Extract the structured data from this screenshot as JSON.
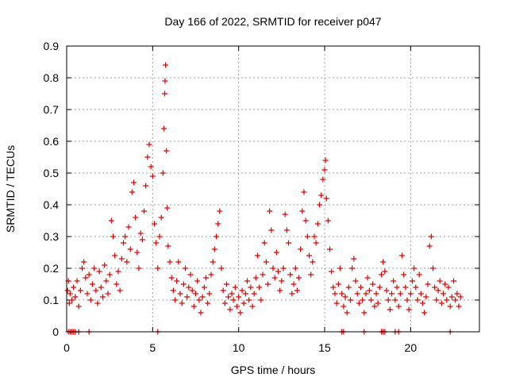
{
  "chart_data": {
    "type": "scatter",
    "title": "Day 166 of 2022, SRMTID for receiver p047",
    "xlabel": "GPS time / hours",
    "ylabel": "SRMTID / TECUs",
    "xlim": [
      0,
      24
    ],
    "ylim": [
      0,
      0.9
    ],
    "xticks": [
      0,
      5,
      10,
      15,
      20
    ],
    "xtick_labels": [
      "0",
      "5",
      "10",
      "15",
      "20"
    ],
    "yticks": [
      0,
      0.1,
      0.2,
      0.3,
      0.4,
      0.5,
      0.6,
      0.7,
      0.8,
      0.9
    ],
    "ytick_labels": [
      "0",
      "0.1",
      "0.2",
      "0.3",
      "0.4",
      "0.5",
      "0.6",
      "0.7",
      "0.8",
      "0.9"
    ],
    "grid": true,
    "marker": "+",
    "color": "#e00000",
    "series": [
      {
        "name": "SRMTID",
        "points": [
          [
            0.05,
            0.13
          ],
          [
            0.1,
            0.16
          ],
          [
            0.15,
            0.09
          ],
          [
            0.2,
            0.12
          ],
          [
            0.3,
            0.1
          ],
          [
            0.4,
            0.14
          ],
          [
            0.5,
            0.11
          ],
          [
            0.6,
            0.16
          ],
          [
            0.7,
            0.08
          ],
          [
            0.8,
            0.13
          ],
          [
            0.9,
            0.2
          ],
          [
            1.0,
            0.22
          ],
          [
            1.1,
            0.17
          ],
          [
            1.2,
            0.12
          ],
          [
            1.3,
            0.18
          ],
          [
            1.4,
            0.1
          ],
          [
            1.5,
            0.15
          ],
          [
            1.6,
            0.2
          ],
          [
            1.7,
            0.13
          ],
          [
            1.8,
            0.09
          ],
          [
            1.9,
            0.19
          ],
          [
            2.0,
            0.14
          ],
          [
            2.1,
            0.11
          ],
          [
            2.2,
            0.21
          ],
          [
            2.3,
            0.16
          ],
          [
            2.4,
            0.12
          ],
          [
            2.5,
            0.18
          ],
          [
            2.6,
            0.35
          ],
          [
            2.7,
            0.3
          ],
          [
            2.8,
            0.24
          ],
          [
            2.9,
            0.15
          ],
          [
            3.0,
            0.19
          ],
          [
            3.1,
            0.13
          ],
          [
            3.2,
            0.23
          ],
          [
            3.3,
            0.28
          ],
          [
            3.4,
            0.3
          ],
          [
            3.5,
            0.22
          ],
          [
            3.6,
            0.33
          ],
          [
            3.7,
            0.26
          ],
          [
            3.8,
            0.44
          ],
          [
            3.9,
            0.47
          ],
          [
            4.0,
            0.36
          ],
          [
            4.1,
            0.25
          ],
          [
            4.2,
            0.2
          ],
          [
            4.3,
            0.31
          ],
          [
            4.4,
            0.29
          ],
          [
            4.5,
            0.38
          ],
          [
            4.6,
            0.46
          ],
          [
            4.7,
            0.55
          ],
          [
            4.8,
            0.59
          ],
          [
            4.9,
            0.52
          ],
          [
            5.0,
            0.49
          ],
          [
            5.1,
            0.34
          ],
          [
            5.2,
            0.28
          ],
          [
            5.3,
            0.2
          ],
          [
            5.4,
            0.3
          ],
          [
            5.5,
            0.36
          ],
          [
            5.6,
            0.5
          ],
          [
            5.65,
            0.64
          ],
          [
            5.7,
            0.75
          ],
          [
            5.72,
            0.79
          ],
          [
            5.75,
            0.84
          ],
          [
            5.8,
            0.57
          ],
          [
            5.85,
            0.39
          ],
          [
            5.9,
            0.27
          ],
          [
            6.0,
            0.22
          ],
          [
            6.1,
            0.17
          ],
          [
            6.2,
            0.13
          ],
          [
            6.3,
            0.1
          ],
          [
            6.4,
            0.16
          ],
          [
            6.5,
            0.22
          ],
          [
            6.6,
            0.12
          ],
          [
            6.7,
            0.09
          ],
          [
            6.8,
            0.15
          ],
          [
            6.9,
            0.2
          ],
          [
            7.0,
            0.11
          ],
          [
            7.1,
            0.14
          ],
          [
            7.2,
            0.18
          ],
          [
            7.3,
            0.13
          ],
          [
            7.4,
            0.08
          ],
          [
            7.5,
            0.12
          ],
          [
            7.6,
            0.16
          ],
          [
            7.7,
            0.1
          ],
          [
            7.8,
            0.06
          ],
          [
            7.9,
            0.11
          ],
          [
            8.0,
            0.14
          ],
          [
            8.1,
            0.17
          ],
          [
            8.2,
            0.09
          ],
          [
            8.3,
            0.12
          ],
          [
            8.4,
            0.18
          ],
          [
            8.5,
            0.22
          ],
          [
            8.6,
            0.26
          ],
          [
            8.7,
            0.3
          ],
          [
            8.8,
            0.34
          ],
          [
            8.9,
            0.38
          ],
          [
            9.0,
            0.2
          ],
          [
            9.1,
            0.13
          ],
          [
            9.2,
            0.09
          ],
          [
            9.3,
            0.15
          ],
          [
            9.4,
            0.11
          ],
          [
            9.5,
            0.07
          ],
          [
            9.6,
            0.12
          ],
          [
            9.7,
            0.1
          ],
          [
            9.8,
            0.14
          ],
          [
            9.9,
            0.08
          ],
          [
            10.0,
            0.11
          ],
          [
            10.1,
            0.06
          ],
          [
            10.2,
            0.13
          ],
          [
            10.3,
            0.09
          ],
          [
            10.4,
            0.12
          ],
          [
            10.5,
            0.16
          ],
          [
            10.6,
            0.1
          ],
          [
            10.7,
            0.14
          ],
          [
            10.8,
            0.08
          ],
          [
            10.9,
            0.12
          ],
          [
            11.0,
            0.17
          ],
          [
            11.1,
            0.24
          ],
          [
            11.2,
            0.14
          ],
          [
            11.3,
            0.1
          ],
          [
            11.4,
            0.18
          ],
          [
            11.5,
            0.28
          ],
          [
            11.6,
            0.22
          ],
          [
            11.7,
            0.15
          ],
          [
            11.8,
            0.38
          ],
          [
            11.9,
            0.32
          ],
          [
            12.0,
            0.2
          ],
          [
            12.1,
            0.17
          ],
          [
            12.2,
            0.25
          ],
          [
            12.3,
            0.19
          ],
          [
            12.4,
            0.13
          ],
          [
            12.5,
            0.16
          ],
          [
            12.6,
            0.2
          ],
          [
            12.7,
            0.37
          ],
          [
            12.8,
            0.32
          ],
          [
            12.9,
            0.28
          ],
          [
            13.0,
            0.18
          ],
          [
            13.1,
            0.12
          ],
          [
            13.2,
            0.15
          ],
          [
            13.3,
            0.2
          ],
          [
            13.4,
            0.13
          ],
          [
            13.5,
            0.17
          ],
          [
            13.6,
            0.26
          ],
          [
            13.7,
            0.38
          ],
          [
            13.8,
            0.44
          ],
          [
            13.9,
            0.35
          ],
          [
            14.0,
            0.3
          ],
          [
            14.1,
            0.24
          ],
          [
            14.2,
            0.18
          ],
          [
            14.3,
            0.22
          ],
          [
            14.4,
            0.3
          ],
          [
            14.5,
            0.28
          ],
          [
            14.6,
            0.34
          ],
          [
            14.7,
            0.4
          ],
          [
            14.8,
            0.43
          ],
          [
            14.9,
            0.48
          ],
          [
            15.0,
            0.51
          ],
          [
            15.05,
            0.54
          ],
          [
            15.1,
            0.42
          ],
          [
            15.2,
            0.35
          ],
          [
            15.3,
            0.26
          ],
          [
            15.4,
            0.19
          ],
          [
            15.5,
            0.14
          ],
          [
            15.6,
            0.12
          ],
          [
            15.7,
            0.09
          ],
          [
            15.8,
            0.15
          ],
          [
            15.9,
            0.2
          ],
          [
            16.0,
            0.12
          ],
          [
            16.1,
            0.08
          ],
          [
            16.2,
            0.11
          ],
          [
            16.3,
            0.06
          ],
          [
            16.4,
            0.14
          ],
          [
            16.5,
            0.1
          ],
          [
            16.6,
            0.2
          ],
          [
            16.7,
            0.23
          ],
          [
            16.8,
            0.16
          ],
          [
            16.9,
            0.12
          ],
          [
            17.0,
            0.09
          ],
          [
            17.1,
            0.14
          ],
          [
            17.2,
            0.1
          ],
          [
            17.3,
            0.06
          ],
          [
            17.4,
            0.12
          ],
          [
            17.5,
            0.17
          ],
          [
            17.6,
            0.13
          ],
          [
            17.7,
            0.1
          ],
          [
            17.8,
            0.15
          ],
          [
            17.9,
            0.08
          ],
          [
            18.0,
            0.12
          ],
          [
            18.1,
            0.09
          ],
          [
            18.2,
            0.14
          ],
          [
            18.3,
            0.18
          ],
          [
            18.4,
            0.22
          ],
          [
            18.5,
            0.19
          ],
          [
            18.6,
            0.13
          ],
          [
            18.7,
            0.1
          ],
          [
            18.8,
            0.07
          ],
          [
            18.9,
            0.12
          ],
          [
            19.0,
            0.16
          ],
          [
            19.1,
            0.1
          ],
          [
            19.2,
            0.14
          ],
          [
            19.3,
            0.08
          ],
          [
            19.4,
            0.12
          ],
          [
            19.5,
            0.24
          ],
          [
            19.6,
            0.18
          ],
          [
            19.7,
            0.14
          ],
          [
            19.8,
            0.1
          ],
          [
            19.9,
            0.07
          ],
          [
            20.0,
            0.12
          ],
          [
            20.1,
            0.16
          ],
          [
            20.2,
            0.2
          ],
          [
            20.3,
            0.14
          ],
          [
            20.4,
            0.1
          ],
          [
            20.5,
            0.18
          ],
          [
            20.6,
            0.12
          ],
          [
            20.7,
            0.09
          ],
          [
            20.8,
            0.06
          ],
          [
            20.9,
            0.11
          ],
          [
            21.0,
            0.15
          ],
          [
            21.1,
            0.27
          ],
          [
            21.2,
            0.3
          ],
          [
            21.3,
            0.2
          ],
          [
            21.4,
            0.14
          ],
          [
            21.5,
            0.1
          ],
          [
            21.6,
            0.13
          ],
          [
            21.7,
            0.16
          ],
          [
            21.8,
            0.09
          ],
          [
            21.9,
            0.12
          ],
          [
            22.0,
            0.15
          ],
          [
            22.1,
            0.1
          ],
          [
            22.2,
            0.14
          ],
          [
            22.3,
            0.08
          ],
          [
            22.4,
            0.11
          ],
          [
            22.5,
            0.16
          ],
          [
            22.6,
            0.1
          ],
          [
            22.7,
            0.12
          ],
          [
            22.8,
            0.08
          ],
          [
            22.9,
            0.11
          ]
        ]
      }
    ],
    "zero_points": [
      0.1,
      0.2,
      0.3,
      0.4,
      0.5,
      0.7,
      1.3,
      5.3,
      16.0,
      16.1,
      17.3,
      18.3,
      18.4,
      18.5,
      19.1,
      19.3,
      22.3
    ]
  }
}
